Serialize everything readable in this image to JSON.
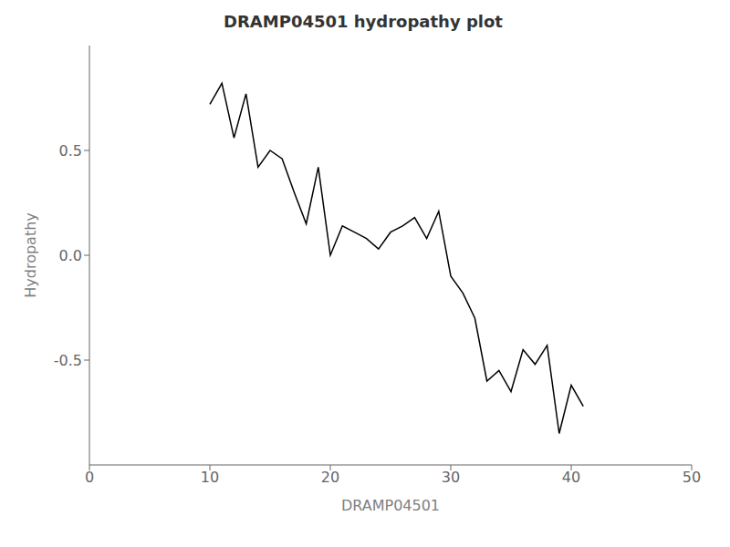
{
  "chart_data": {
    "type": "line",
    "title": "DRAMP04501 hydropathy plot",
    "xlabel": "DRAMP04501",
    "ylabel": "Hydropathy",
    "x": [
      10,
      11,
      12,
      13,
      14,
      15,
      16,
      17,
      18,
      19,
      20,
      21,
      22,
      23,
      24,
      25,
      26,
      27,
      28,
      29,
      30,
      31,
      32,
      33,
      34,
      35,
      36,
      37,
      38,
      39,
      40,
      41
    ],
    "values": [
      0.72,
      0.82,
      0.56,
      0.77,
      0.42,
      0.5,
      0.46,
      0.3,
      0.15,
      0.42,
      0.0,
      0.14,
      0.11,
      0.08,
      0.03,
      0.11,
      0.14,
      0.18,
      0.08,
      0.21,
      -0.1,
      -0.18,
      -0.3,
      -0.6,
      -0.55,
      -0.65,
      -0.45,
      -0.52,
      -0.43,
      -0.85,
      -0.62,
      -0.72
    ],
    "color": "#000000",
    "xlim": [
      0,
      50
    ],
    "ylim": [
      -1.0,
      1.0
    ],
    "xticks": [
      0,
      10,
      20,
      30,
      40,
      50
    ],
    "yticks": [
      -0.5,
      {
        "value": 0,
        "label": "0.0"
      },
      0.5
    ],
    "grid": false
  }
}
